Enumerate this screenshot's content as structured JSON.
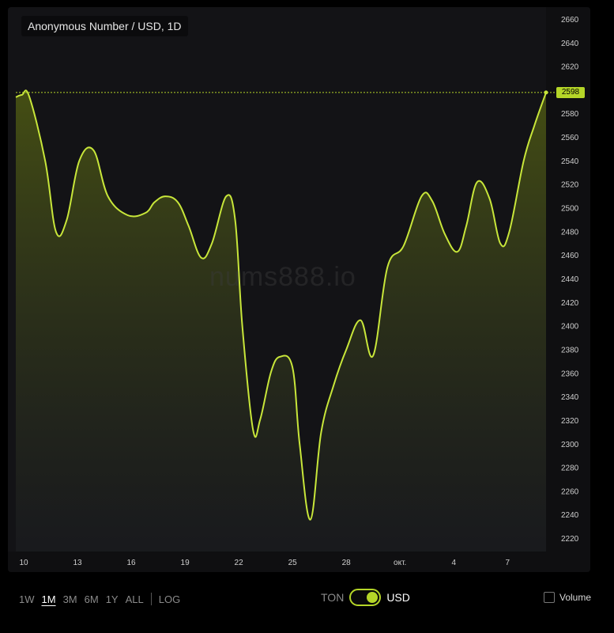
{
  "colors": {
    "accent": "#b5d628",
    "background": "#000000",
    "panel": "#131316"
  },
  "watermark": "nums888.io",
  "last_price_label": "2598",
  "chart_data": {
    "type": "area",
    "title": "Anonymous Number / USD, 1D",
    "xlabel": "",
    "ylabel": "",
    "ylim": [
      2215,
      2665
    ],
    "y_ticks": [
      2220,
      2240,
      2260,
      2280,
      2300,
      2320,
      2340,
      2360,
      2380,
      2400,
      2420,
      2440,
      2460,
      2480,
      2500,
      2520,
      2540,
      2560,
      2580,
      2600,
      2620,
      2640,
      2660
    ],
    "x_ticks": [
      {
        "x": 0,
        "label": "10"
      },
      {
        "x": 3,
        "label": "13"
      },
      {
        "x": 6,
        "label": "16"
      },
      {
        "x": 9,
        "label": "19"
      },
      {
        "x": 12,
        "label": "22"
      },
      {
        "x": 15,
        "label": "25"
      },
      {
        "x": 18,
        "label": "28"
      },
      {
        "x": 21,
        "label": "окт."
      },
      {
        "x": 24,
        "label": "4"
      },
      {
        "x": 27,
        "label": "7"
      }
    ],
    "xlim": [
      -0.5,
      29.15
    ],
    "grid": false,
    "legend": "none",
    "last_value": 2598,
    "series": [
      {
        "x": [
          -0.5,
          -0.1,
          0.3,
          1.2,
          1.8,
          2.4,
          3.1,
          3.9,
          4.7,
          5.8,
          6.8,
          7.3,
          7.9,
          8.6,
          9.2,
          9.9,
          10.5,
          11.3,
          11.8,
          12.2,
          12.8,
          13.2,
          13.8,
          14.3,
          15,
          15.4,
          16,
          16.6,
          17.3,
          18,
          18.8,
          19.5,
          20.3,
          21.2,
          22.2,
          22.8,
          23.5,
          24.2,
          24.7,
          25.3,
          26,
          26.6,
          27.1,
          27.9,
          28.5,
          29.15
        ],
        "values": [
          2594,
          2596,
          2595,
          2540,
          2480,
          2490,
          2540,
          2549,
          2510,
          2494,
          2496,
          2505,
          2510,
          2505,
          2485,
          2458,
          2470,
          2510,
          2490,
          2400,
          2312,
          2321,
          2361,
          2374,
          2365,
          2300,
          2236,
          2310,
          2350,
          2380,
          2405,
          2375,
          2450,
          2468,
          2510,
          2506,
          2478,
          2463,
          2485,
          2522,
          2508,
          2470,
          2480,
          2540,
          2570,
          2598
        ]
      }
    ]
  },
  "toolbar": {
    "range_buttons": [
      "1W",
      "1M",
      "3M",
      "6M",
      "1Y",
      "ALL"
    ],
    "log_label": "LOG",
    "currency_left": "TON",
    "currency_right": "USD",
    "volume_label": "Volume"
  }
}
